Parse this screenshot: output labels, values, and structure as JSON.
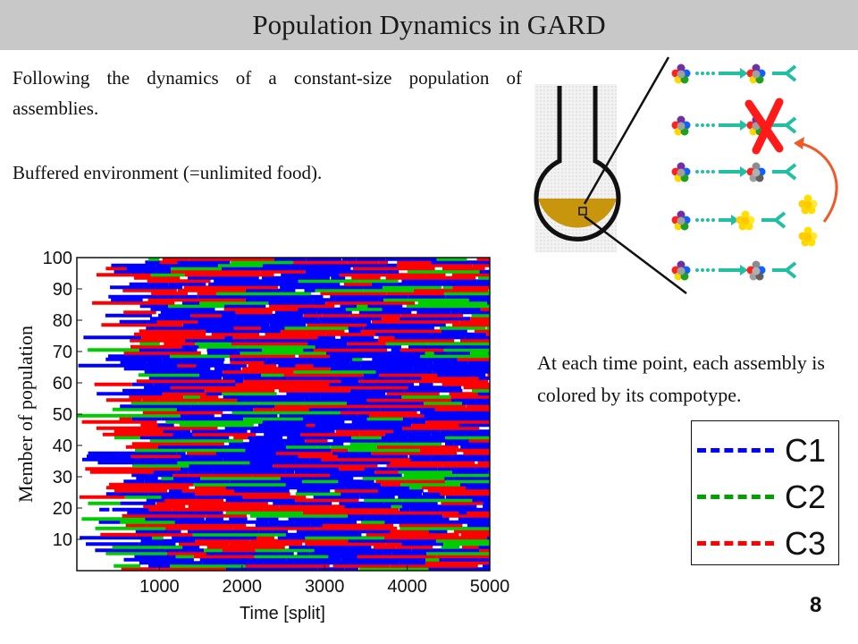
{
  "slide": {
    "title": "Population Dynamics in GARD",
    "paragraph1": "Following the dynamics of a constant-size population of assemblies.",
    "paragraph2": "Buffered environment (=unlimited food).",
    "paragraph3": "At each time point, each assembly is colored by its compotype.",
    "slide_number": "8"
  },
  "chart_data": {
    "type": "heatmap",
    "xlabel": "Time [split]",
    "ylabel": "Member of population",
    "xlim": [
      0,
      5000
    ],
    "ylim": [
      0,
      100
    ],
    "xticks": [
      1000,
      2000,
      3000,
      4000,
      5000
    ],
    "yticks": [
      10,
      20,
      30,
      40,
      50,
      60,
      70,
      80,
      90,
      100
    ],
    "legend": {
      "placement": "right",
      "entries": [
        {
          "label": "C1",
          "color": "#0000ff"
        },
        {
          "label": "C2",
          "color": "#00cc00"
        },
        {
          "label": "C3",
          "color": "#ff0000"
        }
      ]
    }
  },
  "colors": {
    "title_bar": "#c8c8c8",
    "flask_liquid": "#c8960c",
    "arrow": "#20c0a0",
    "cross": "#ff1a1a",
    "curve_arrow": "#f05a28"
  }
}
